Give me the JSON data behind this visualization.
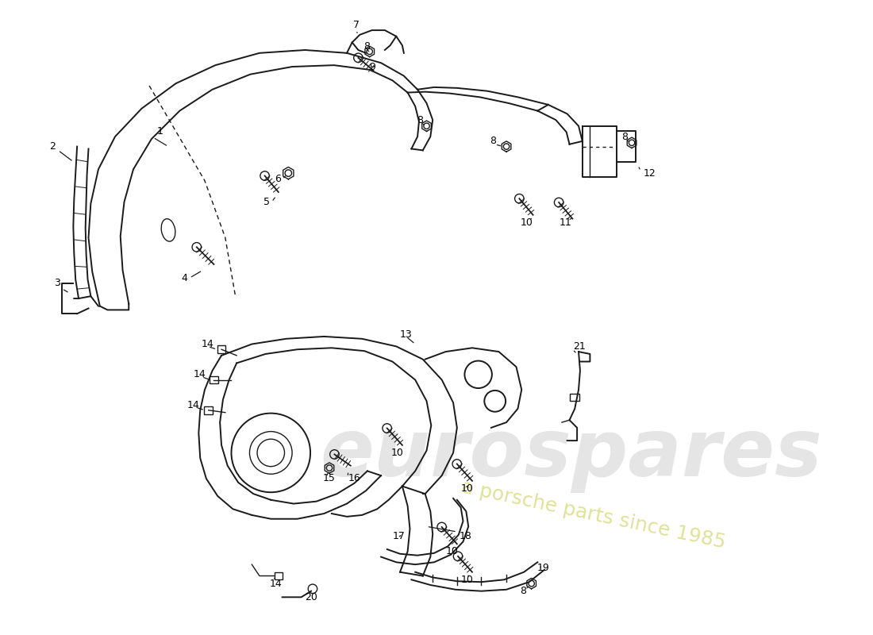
{
  "bg_color": "#ffffff",
  "line_color": "#1a1a1a",
  "watermark1": "eurospares",
  "watermark2": "a porsche parts since 1985",
  "wm_color1": "#cccccc",
  "wm_color2": "#c8c050",
  "figsize": [
    11.0,
    8.0
  ],
  "dpi": 100
}
